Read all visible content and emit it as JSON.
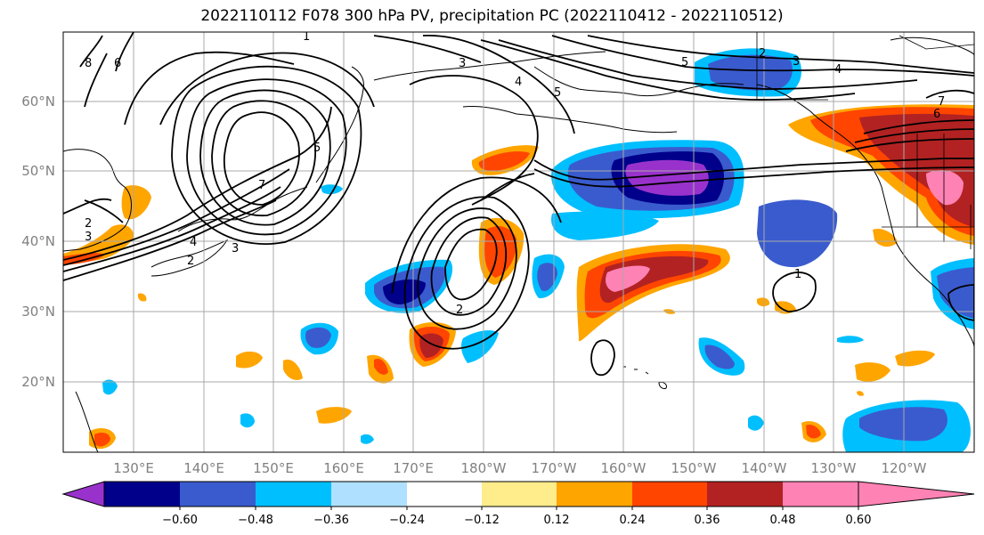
{
  "title": "2022110112 F078 300 hPa PV, precipitation PC (2022110412 - 2022110512)",
  "lat_labels": [
    "60°N",
    "50°N",
    "40°N",
    "30°N",
    "20°N"
  ],
  "lon_labels": [
    "130°E",
    "140°E",
    "150°E",
    "160°E",
    "170°E",
    "180°W",
    "170°W",
    "160°W",
    "150°W",
    "140°W",
    "130°W",
    "120°W"
  ],
  "colorbar": {
    "colors": [
      "#9932cc",
      "#00008b",
      "#3a5bcd",
      "#00bfff",
      "#b0e0ff",
      "#ffffff",
      "#ffec8b",
      "#ffa500",
      "#ff4500",
      "#b22222",
      "#ff82b4"
    ],
    "tick_labels": [
      "−0.60",
      "−0.48",
      "−0.36",
      "−0.24",
      "−0.12",
      "0.12",
      "0.24",
      "0.36",
      "0.48",
      "0.60"
    ]
  },
  "contour_labels": [
    "1",
    "2",
    "3",
    "4",
    "5",
    "6",
    "7",
    "8"
  ]
}
